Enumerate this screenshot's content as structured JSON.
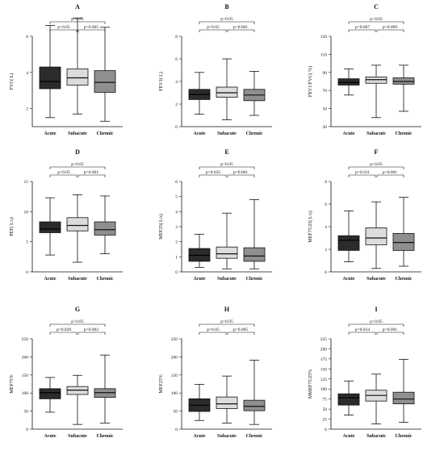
{
  "chart_data": [
    {
      "type": "boxplot",
      "panel": "A",
      "ylabel": "FVC( L)",
      "ylim": [
        1,
        6
      ],
      "yticks": [
        2,
        4,
        6
      ],
      "categories": [
        "Acute",
        "Subacute",
        "Chronic"
      ],
      "boxes": [
        {
          "min": 1.5,
          "q1": 3.1,
          "median": 3.5,
          "q3": 4.3,
          "max": 6.6
        },
        {
          "min": 1.7,
          "q1": 3.3,
          "median": 3.7,
          "q3": 4.2,
          "max": 7.0
        },
        {
          "min": 1.3,
          "q1": 2.9,
          "median": 3.45,
          "q3": 4.1,
          "max": 6.5
        }
      ],
      "annotations": {
        "top": "p>0.05",
        "left": "p>0.05",
        "right": "p=0.005"
      }
    },
    {
      "type": "boxplot",
      "panel": "B",
      "ylabel": "FEV1( L)",
      "ylim": [
        0,
        8
      ],
      "yticks": [
        0,
        2,
        4,
        6,
        8
      ],
      "categories": [
        "Acute",
        "Subacute",
        "Chronic"
      ],
      "boxes": [
        {
          "min": 1.1,
          "q1": 2.4,
          "median": 2.85,
          "q3": 3.3,
          "max": 4.8
        },
        {
          "min": 0.6,
          "q1": 2.6,
          "median": 3.0,
          "q3": 3.5,
          "max": 6.0
        },
        {
          "min": 1.0,
          "q1": 2.3,
          "median": 2.8,
          "q3": 3.3,
          "max": 4.9
        }
      ],
      "annotations": {
        "top": "p>0.05",
        "left": "p>0.05",
        "right": "p<0.001"
      }
    },
    {
      "type": "boxplot",
      "panel": "C",
      "ylabel": "FEV1/FVC( %)",
      "ylim": [
        30,
        130
      ],
      "yticks": [
        30,
        50,
        70,
        90,
        110,
        130
      ],
      "categories": [
        "Acute",
        "Subacute",
        "Chronic"
      ],
      "boxes": [
        {
          "min": 65,
          "q1": 76,
          "median": 79,
          "q3": 83,
          "max": 94
        },
        {
          "min": 40,
          "q1": 78,
          "median": 82,
          "q3": 85,
          "max": 98
        },
        {
          "min": 47,
          "q1": 77,
          "median": 80,
          "q3": 84,
          "max": 98
        }
      ],
      "annotations": {
        "top": "p>0.05",
        "left": "p=0.007",
        "right": "p=0.009"
      }
    },
    {
      "type": "boxplot",
      "panel": "D",
      "ylabel": "PEF( L/s)",
      "ylim": [
        0,
        15
      ],
      "yticks": [
        0,
        5,
        10,
        15
      ],
      "categories": [
        "Acute",
        "Subacute",
        "Chronic"
      ],
      "boxes": [
        {
          "min": 2.8,
          "q1": 6.5,
          "median": 7.1,
          "q3": 8.3,
          "max": 12.3
        },
        {
          "min": 1.6,
          "q1": 6.8,
          "median": 7.7,
          "q3": 9.0,
          "max": 12.8
        },
        {
          "min": 3.0,
          "q1": 6.1,
          "median": 7.0,
          "q3": 8.3,
          "max": 12.6
        }
      ],
      "annotations": {
        "top": "p>0.05",
        "left": "p>0.05",
        "right": "p=0.001"
      }
    },
    {
      "type": "boxplot",
      "panel": "E",
      "ylabel": "MEF25( L/s)",
      "ylim": [
        0,
        6
      ],
      "yticks": [
        0,
        1,
        2,
        3,
        4,
        5,
        6
      ],
      "categories": [
        "Acute",
        "Subacute",
        "Chronic"
      ],
      "boxes": [
        {
          "min": 0.3,
          "q1": 0.7,
          "median": 1.1,
          "q3": 1.55,
          "max": 2.5
        },
        {
          "min": 0.2,
          "q1": 0.9,
          "median": 1.2,
          "q3": 1.65,
          "max": 3.9
        },
        {
          "min": 0.2,
          "q1": 0.7,
          "median": 1.05,
          "q3": 1.6,
          "max": 4.8
        }
      ],
      "annotations": {
        "top": "p>0.05",
        "left": "p=0.035",
        "right": "p=0.001"
      }
    },
    {
      "type": "boxplot",
      "panel": "F",
      "ylabel": "MEF75/25( L/s)",
      "ylim": [
        0,
        8
      ],
      "yticks": [
        0,
        2,
        4,
        6,
        8
      ],
      "categories": [
        "Acute",
        "Subacute",
        "Chronic"
      ],
      "boxes": [
        {
          "min": 0.9,
          "q1": 1.9,
          "median": 2.8,
          "q3": 3.2,
          "max": 5.4
        },
        {
          "min": 0.3,
          "q1": 2.4,
          "median": 3.0,
          "q3": 3.9,
          "max": 6.2
        },
        {
          "min": 0.5,
          "q1": 1.9,
          "median": 2.6,
          "q3": 3.4,
          "max": 6.6
        }
      ],
      "annotations": {
        "top": "p>0.05",
        "left": "p=0.011",
        "right": "p<0.001"
      }
    },
    {
      "type": "boxplot",
      "panel": "G",
      "ylabel": "MEF75%",
      "ylim": [
        0,
        250
      ],
      "yticks": [
        0,
        50,
        100,
        150,
        200,
        250
      ],
      "categories": [
        "Acute",
        "Subacute",
        "Chronic"
      ],
      "boxes": [
        {
          "min": 47,
          "q1": 84,
          "median": 101,
          "q3": 112,
          "max": 143
        },
        {
          "min": 13,
          "q1": 96,
          "median": 108,
          "q3": 118,
          "max": 149
        },
        {
          "min": 17,
          "q1": 88,
          "median": 101,
          "q3": 112,
          "max": 205
        }
      ],
      "annotations": {
        "top": "p>0.05",
        "left": "p=0.028",
        "right": "p=0.002"
      }
    },
    {
      "type": "boxplot",
      "panel": "H",
      "ylabel": "MEF25%",
      "ylim": [
        0,
        250
      ],
      "yticks": [
        0,
        50,
        100,
        150,
        200,
        250
      ],
      "categories": [
        "Acute",
        "Subacute",
        "Chronic"
      ],
      "boxes": [
        {
          "min": 24,
          "q1": 49,
          "median": 66,
          "q3": 84,
          "max": 124
        },
        {
          "min": 17,
          "q1": 57,
          "median": 70,
          "q3": 89,
          "max": 147
        },
        {
          "min": 13,
          "q1": 51,
          "median": 63,
          "q3": 80,
          "max": 191
        }
      ],
      "annotations": {
        "top": "p>0.05",
        "left": "p=0.05",
        "right": "p=0.005"
      }
    },
    {
      "type": "boxplot",
      "panel": "I",
      "ylabel": "MMEF75/25%",
      "ylim": [
        0,
        225
      ],
      "yticks": [
        0,
        25,
        50,
        75,
        100,
        125,
        150,
        175,
        200,
        225
      ],
      "categories": [
        "Acute",
        "Subacute",
        "Chronic"
      ],
      "boxes": [
        {
          "min": 35,
          "q1": 60,
          "median": 78,
          "q3": 88,
          "max": 120
        },
        {
          "min": 13,
          "q1": 70,
          "median": 84,
          "q3": 97,
          "max": 137
        },
        {
          "min": 17,
          "q1": 63,
          "median": 75,
          "q3": 92,
          "max": 174
        }
      ],
      "annotations": {
        "top": "p>0.05",
        "left": "p=0.014",
        "right": "p=0.001"
      }
    }
  ],
  "colors": {
    "acute": "#2b2b2b",
    "subacute": "#dcdcdc",
    "chronic": "#8f8f8f",
    "stroke": "#111111"
  }
}
